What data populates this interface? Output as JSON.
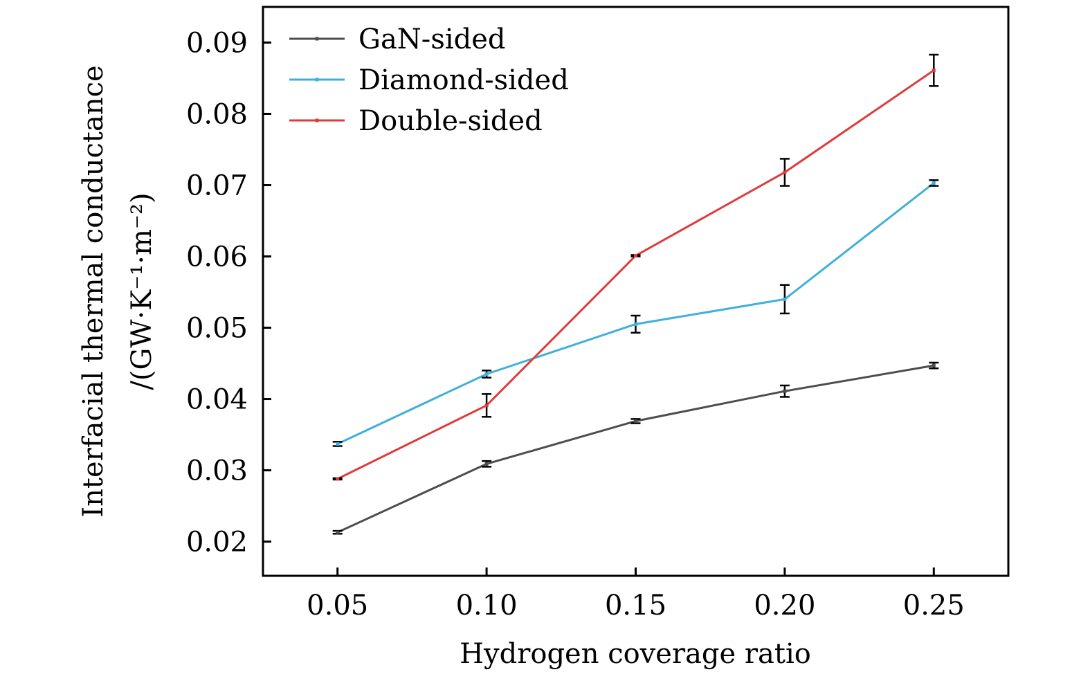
{
  "chart_data": {
    "type": "line",
    "title": "",
    "xlabel": "Hydrogen coverage ratio",
    "ylabel_line1": "Interfacial thermal conductance",
    "ylabel_line2": "/(GW·K⁻¹·m⁻²)",
    "x": [
      0.05,
      0.1,
      0.15,
      0.2,
      0.25
    ],
    "x_tick_labels": [
      "0.05",
      "0.10",
      "0.15",
      "0.20",
      "0.25"
    ],
    "y_ticks": [
      0.02,
      0.03,
      0.04,
      0.05,
      0.06,
      0.07,
      0.08,
      0.09
    ],
    "y_tick_labels": [
      "0.02",
      "0.03",
      "0.04",
      "0.05",
      "0.06",
      "0.07",
      "0.08",
      "0.09"
    ],
    "xlim": [
      0.025,
      0.275
    ],
    "ylim": [
      0.0152,
      0.095
    ],
    "grid": false,
    "legend_position": "top-left",
    "series": [
      {
        "name": "GaN-sided",
        "color": "#4d4d4d",
        "values": [
          0.0213,
          0.0309,
          0.0369,
          0.0411,
          0.0447
        ],
        "errors": [
          0.0002,
          0.0004,
          0.0003,
          0.0008,
          0.0004
        ]
      },
      {
        "name": "Diamond-sided",
        "color": "#3fb0d8",
        "values": [
          0.0337,
          0.0435,
          0.0505,
          0.054,
          0.0703
        ],
        "errors": [
          0.0003,
          0.0005,
          0.0012,
          0.002,
          0.0004
        ]
      },
      {
        "name": "Double-sided",
        "color": "#e03a3a",
        "values": [
          0.0288,
          0.0391,
          0.0601,
          0.0718,
          0.0861
        ],
        "errors": [
          0.0001,
          0.0016,
          0.0001,
          0.0019,
          0.0022
        ]
      }
    ]
  }
}
